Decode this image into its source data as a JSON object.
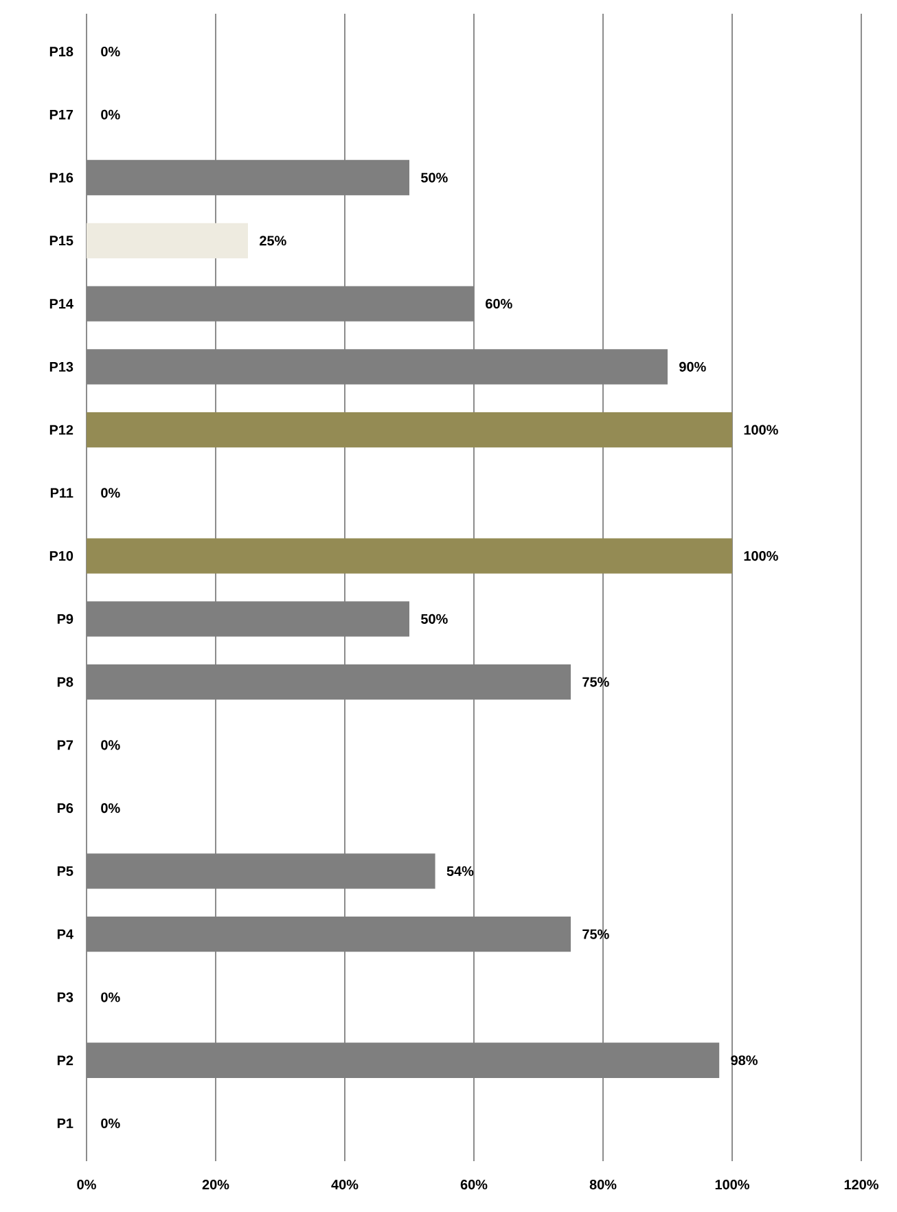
{
  "chart_data": {
    "type": "bar",
    "orientation": "horizontal",
    "categories": [
      "P18",
      "P17",
      "P16",
      "P15",
      "P14",
      "P13",
      "P12",
      "P11",
      "P10",
      "P9",
      "P8",
      "P7",
      "P6",
      "P5",
      "P4",
      "P3",
      "P2",
      "P1"
    ],
    "values": [
      0,
      0,
      50,
      25,
      60,
      90,
      100,
      0,
      100,
      50,
      75,
      0,
      0,
      54,
      75,
      0,
      98,
      0
    ],
    "value_labels": [
      "0%",
      "0%",
      "50%",
      "25%",
      "60%",
      "90%",
      "100%",
      "0%",
      "100%",
      "50%",
      "75%",
      "0%",
      "0%",
      "54%",
      "75%",
      "0%",
      "98%",
      "0%"
    ],
    "colors": [
      "#7f7f7f",
      "#7f7f7f",
      "#7f7f7f",
      "#eeebe0",
      "#7f7f7f",
      "#7f7f7f",
      "#948b54",
      "#7f7f7f",
      "#948b54",
      "#7f7f7f",
      "#7f7f7f",
      "#7f7f7f",
      "#7f7f7f",
      "#7f7f7f",
      "#7f7f7f",
      "#7f7f7f",
      "#7f7f7f",
      "#7f7f7f"
    ],
    "xlim": [
      0,
      120
    ],
    "xticks": [
      {
        "value": 0,
        "label": "0%"
      },
      {
        "value": 20,
        "label": "20%"
      },
      {
        "value": 40,
        "label": "40%"
      },
      {
        "value": 60,
        "label": "60%"
      },
      {
        "value": 80,
        "label": "80%"
      },
      {
        "value": 100,
        "label": "100%"
      },
      {
        "value": 120,
        "label": "120%"
      }
    ],
    "grid": "x"
  }
}
